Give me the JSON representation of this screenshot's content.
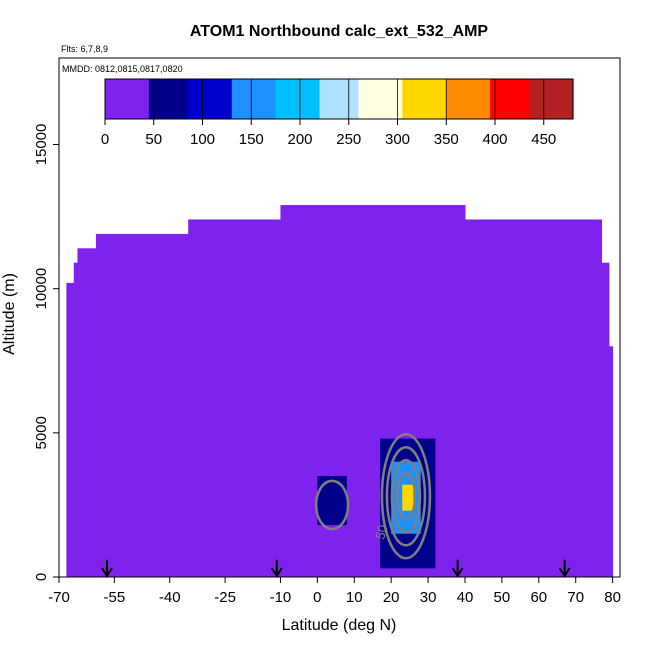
{
  "chart_data": {
    "type": "heatmap",
    "title": "ATOM1 Northbound calc_ext_532_AMP",
    "subtitle_flights": "Flts: 6,7,8,9",
    "subtitle_dates": "MMDD: 0812,0815,0817,0820",
    "xlabel": "Latitude (deg N)",
    "ylabel": "Altitude (m)",
    "xlim": [
      -70,
      82
    ],
    "ylim": [
      0,
      18000
    ],
    "x_ticks": [
      -70,
      -55,
      -40,
      -25,
      -10,
      0,
      10,
      20,
      30,
      40,
      50,
      60,
      70,
      80
    ],
    "y_ticks": [
      0,
      5000,
      10000,
      15000
    ],
    "colorbar": {
      "ticks": [
        0,
        50,
        100,
        150,
        200,
        250,
        300,
        350,
        400,
        450
      ],
      "range": [
        0,
        480
      ],
      "colors": [
        "#7f22ee",
        "#00008b",
        "#0000cd",
        "#1e90ff",
        "#00bfff",
        "#b0e2ff",
        "#ffffe0",
        "#ffd700",
        "#ff8c00",
        "#ff0000",
        "#b22222"
      ]
    },
    "background_value": 8,
    "curtain_top_profile": [
      {
        "x0": -68,
        "x1": -66,
        "top": 10200
      },
      {
        "x0": -66,
        "x1": -65,
        "top": 10900
      },
      {
        "x0": -65,
        "x1": -60,
        "top": 11400
      },
      {
        "x0": -60,
        "x1": -35,
        "top": 11900
      },
      {
        "x0": -35,
        "x1": -10,
        "top": 12400
      },
      {
        "x0": -10,
        "x1": 40,
        "top": 12900
      },
      {
        "x0": 40,
        "x1": 77,
        "top": 12400
      },
      {
        "x0": 77,
        "x1": 79,
        "top": 10900
      },
      {
        "x0": 79,
        "x1": 80,
        "top": 8000
      }
    ],
    "features": [
      {
        "name": "lower-layer",
        "x0": -62,
        "x1": 78,
        "y0": 0,
        "y1": 1200,
        "value": 30
      },
      {
        "name": "south-plume",
        "x0": -3,
        "x1": 10,
        "y0": 1200,
        "y1": 4200,
        "value": 40
      },
      {
        "name": "south-plume-core",
        "x0": 0,
        "x1": 8,
        "y0": 1800,
        "y1": 3500,
        "value": 55
      },
      {
        "name": "north-plume",
        "x0": 17,
        "x1": 32,
        "y0": 300,
        "y1": 4800,
        "value": 70
      },
      {
        "name": "north-plume-core",
        "x0": 20,
        "x1": 28,
        "y0": 1500,
        "y1": 4000,
        "value": 150
      },
      {
        "name": "north-plume-peak",
        "x0": 23,
        "x1": 26,
        "y0": 2300,
        "y1": 3200,
        "value": 330
      }
    ],
    "contours": [
      {
        "value": 50,
        "label": "50"
      },
      {
        "value": 100,
        "label": ""
      },
      {
        "value": 150,
        "label": ""
      },
      {
        "value": 200,
        "label": ""
      }
    ],
    "flight_markers_latitude": [
      -57,
      -11,
      38,
      67
    ]
  }
}
